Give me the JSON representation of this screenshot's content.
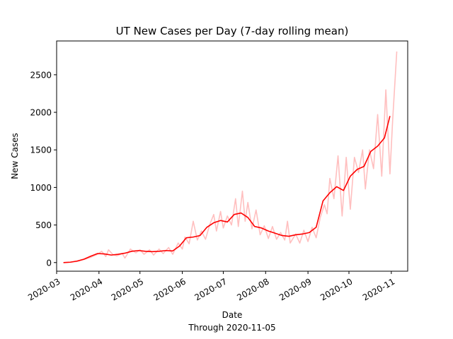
{
  "chart_data": {
    "type": "line",
    "title": "UT New Cases per Day (7-day rolling mean)",
    "xlabel": "Date",
    "xlabel_sub": "Through 2020-11-05",
    "ylabel": "New Cases",
    "xlim": [
      "2020-03-01",
      "2020-11-13"
    ],
    "ylim": [
      -115,
      2950
    ],
    "x_ticks": [
      "2020-03",
      "2020-04",
      "2020-05",
      "2020-06",
      "2020-07",
      "2020-08",
      "2020-09",
      "2020-10",
      "2020-11"
    ],
    "y_ticks": [
      0,
      500,
      1000,
      1500,
      2000,
      2500
    ],
    "grid": false,
    "legend": "none",
    "series": [
      {
        "role": "daily",
        "color": "#ffbfbf",
        "points": [
          [
            "2020-03-06",
            0
          ],
          [
            "2020-03-11",
            5
          ],
          [
            "2020-03-16",
            15
          ],
          [
            "2020-03-21",
            40
          ],
          [
            "2020-03-26",
            70
          ],
          [
            "2020-03-31",
            110
          ],
          [
            "2020-04-03",
            150
          ],
          [
            "2020-04-06",
            80
          ],
          [
            "2020-04-08",
            170
          ],
          [
            "2020-04-11",
            110
          ],
          [
            "2020-04-14",
            90
          ],
          [
            "2020-04-18",
            120
          ],
          [
            "2020-04-20",
            60
          ],
          [
            "2020-04-24",
            180
          ],
          [
            "2020-04-28",
            130
          ],
          [
            "2020-05-01",
            170
          ],
          [
            "2020-05-04",
            110
          ],
          [
            "2020-05-08",
            170
          ],
          [
            "2020-05-11",
            100
          ],
          [
            "2020-05-15",
            180
          ],
          [
            "2020-05-18",
            120
          ],
          [
            "2020-05-22",
            200
          ],
          [
            "2020-05-25",
            110
          ],
          [
            "2020-05-29",
            260
          ],
          [
            "2020-06-01",
            180
          ],
          [
            "2020-06-03",
            340
          ],
          [
            "2020-06-06",
            250
          ],
          [
            "2020-06-09",
            550
          ],
          [
            "2020-06-12",
            300
          ],
          [
            "2020-06-15",
            420
          ],
          [
            "2020-06-18",
            310
          ],
          [
            "2020-06-21",
            500
          ],
          [
            "2020-06-24",
            640
          ],
          [
            "2020-06-26",
            420
          ],
          [
            "2020-06-29",
            680
          ],
          [
            "2020-07-01",
            460
          ],
          [
            "2020-07-04",
            620
          ],
          [
            "2020-07-07",
            500
          ],
          [
            "2020-07-10",
            850
          ],
          [
            "2020-07-12",
            480
          ],
          [
            "2020-07-15",
            950
          ],
          [
            "2020-07-17",
            550
          ],
          [
            "2020-07-19",
            800
          ],
          [
            "2020-07-22",
            450
          ],
          [
            "2020-07-25",
            700
          ],
          [
            "2020-07-28",
            370
          ],
          [
            "2020-07-31",
            490
          ],
          [
            "2020-08-03",
            320
          ],
          [
            "2020-08-06",
            480
          ],
          [
            "2020-08-09",
            310
          ],
          [
            "2020-08-12",
            400
          ],
          [
            "2020-08-15",
            300
          ],
          [
            "2020-08-17",
            550
          ],
          [
            "2020-08-19",
            260
          ],
          [
            "2020-08-23",
            380
          ],
          [
            "2020-08-26",
            260
          ],
          [
            "2020-08-29",
            430
          ],
          [
            "2020-09-01",
            280
          ],
          [
            "2020-09-04",
            470
          ],
          [
            "2020-09-07",
            330
          ],
          [
            "2020-09-10",
            600
          ],
          [
            "2020-09-13",
            770
          ],
          [
            "2020-09-15",
            650
          ],
          [
            "2020-09-17",
            1120
          ],
          [
            "2020-09-20",
            850
          ],
          [
            "2020-09-23",
            1420
          ],
          [
            "2020-09-26",
            620
          ],
          [
            "2020-09-29",
            1400
          ],
          [
            "2020-10-02",
            710
          ],
          [
            "2020-10-05",
            1400
          ],
          [
            "2020-10-08",
            1200
          ],
          [
            "2020-10-11",
            1500
          ],
          [
            "2020-10-13",
            980
          ],
          [
            "2020-10-16",
            1500
          ],
          [
            "2020-10-19",
            1250
          ],
          [
            "2020-10-22",
            1970
          ],
          [
            "2020-10-25",
            1150
          ],
          [
            "2020-10-28",
            2300
          ],
          [
            "2020-10-31",
            1180
          ],
          [
            "2020-11-02",
            1900
          ],
          [
            "2020-11-05",
            2810
          ]
        ]
      },
      {
        "role": "rolling-mean",
        "color": "#ff0000",
        "points": [
          [
            "2020-03-06",
            0
          ],
          [
            "2020-03-11",
            5
          ],
          [
            "2020-03-16",
            20
          ],
          [
            "2020-03-21",
            45
          ],
          [
            "2020-03-26",
            85
          ],
          [
            "2020-03-31",
            120
          ],
          [
            "2020-04-05",
            115
          ],
          [
            "2020-04-10",
            100
          ],
          [
            "2020-04-15",
            110
          ],
          [
            "2020-04-20",
            125
          ],
          [
            "2020-04-25",
            150
          ],
          [
            "2020-04-30",
            160
          ],
          [
            "2020-05-05",
            150
          ],
          [
            "2020-05-10",
            145
          ],
          [
            "2020-05-15",
            150
          ],
          [
            "2020-05-20",
            160
          ],
          [
            "2020-05-25",
            155
          ],
          [
            "2020-05-30",
            220
          ],
          [
            "2020-06-04",
            330
          ],
          [
            "2020-06-09",
            340
          ],
          [
            "2020-06-14",
            360
          ],
          [
            "2020-06-19",
            470
          ],
          [
            "2020-06-24",
            530
          ],
          [
            "2020-06-29",
            560
          ],
          [
            "2020-07-04",
            540
          ],
          [
            "2020-07-09",
            640
          ],
          [
            "2020-07-14",
            660
          ],
          [
            "2020-07-19",
            600
          ],
          [
            "2020-07-24",
            480
          ],
          [
            "2020-07-29",
            460
          ],
          [
            "2020-08-03",
            420
          ],
          [
            "2020-08-08",
            390
          ],
          [
            "2020-08-13",
            360
          ],
          [
            "2020-08-18",
            350
          ],
          [
            "2020-08-23",
            370
          ],
          [
            "2020-08-28",
            380
          ],
          [
            "2020-09-02",
            400
          ],
          [
            "2020-09-07",
            470
          ],
          [
            "2020-09-12",
            820
          ],
          [
            "2020-09-17",
            930
          ],
          [
            "2020-09-22",
            1010
          ],
          [
            "2020-09-27",
            960
          ],
          [
            "2020-10-02",
            1150
          ],
          [
            "2020-10-07",
            1240
          ],
          [
            "2020-10-12",
            1280
          ],
          [
            "2020-10-17",
            1480
          ],
          [
            "2020-10-22",
            1550
          ],
          [
            "2020-10-27",
            1660
          ],
          [
            "2020-10-31",
            1950
          ]
        ]
      }
    ]
  }
}
